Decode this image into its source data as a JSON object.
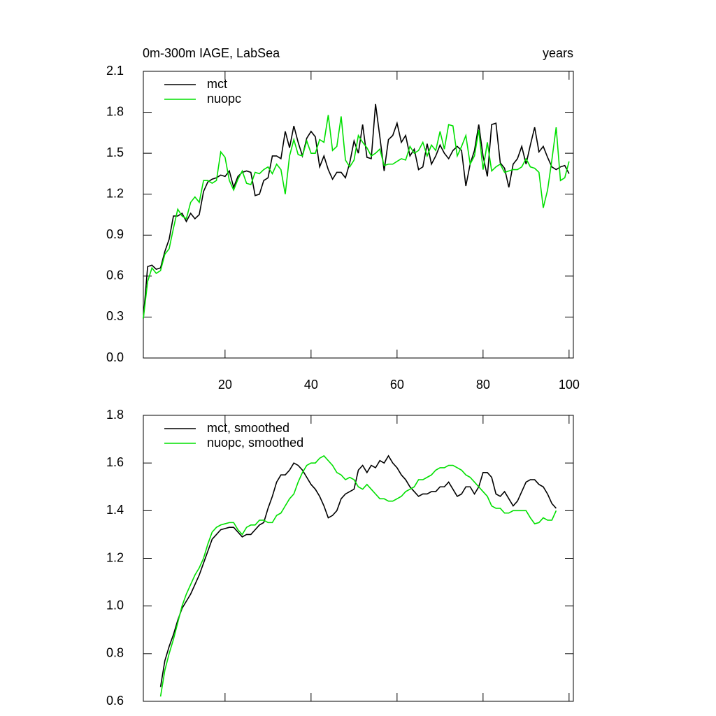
{
  "chart_data": [
    {
      "type": "line",
      "title": "0m-300m IAGE, LabSea",
      "right_title": "years",
      "x": [
        1,
        2,
        3,
        4,
        5,
        6,
        7,
        8,
        9,
        10,
        11,
        12,
        13,
        14,
        15,
        16,
        17,
        18,
        19,
        20,
        21,
        22,
        23,
        24,
        25,
        26,
        27,
        28,
        29,
        30,
        31,
        32,
        33,
        34,
        35,
        36,
        37,
        38,
        39,
        40,
        41,
        42,
        43,
        44,
        45,
        46,
        47,
        48,
        49,
        50,
        51,
        52,
        53,
        54,
        55,
        56,
        57,
        58,
        59,
        60,
        61,
        62,
        63,
        64,
        65,
        66,
        67,
        68,
        69,
        70,
        71,
        72,
        73,
        74,
        75,
        76,
        77,
        78,
        79,
        80,
        81,
        82,
        83,
        84,
        85,
        86,
        87,
        88,
        89,
        90,
        91,
        92,
        93,
        94,
        95,
        96,
        97,
        98,
        99,
        100
      ],
      "series": [
        {
          "name": "mct",
          "color": "#000000",
          "values": [
            0.29,
            0.67,
            0.68,
            0.65,
            0.66,
            0.78,
            0.87,
            1.04,
            1.04,
            1.06,
            1.0,
            1.06,
            1.02,
            1.05,
            1.22,
            1.29,
            1.31,
            1.32,
            1.34,
            1.33,
            1.37,
            1.25,
            1.33,
            1.36,
            1.37,
            1.36,
            1.19,
            1.2,
            1.3,
            1.32,
            1.48,
            1.48,
            1.46,
            1.66,
            1.54,
            1.7,
            1.58,
            1.48,
            1.61,
            1.66,
            1.62,
            1.4,
            1.48,
            1.38,
            1.31,
            1.36,
            1.36,
            1.32,
            1.43,
            1.59,
            1.5,
            1.71,
            1.47,
            1.46,
            1.86,
            1.62,
            1.37,
            1.6,
            1.63,
            1.72,
            1.58,
            1.63,
            1.48,
            1.53,
            1.38,
            1.4,
            1.57,
            1.42,
            1.48,
            1.56,
            1.5,
            1.46,
            1.52,
            1.55,
            1.52,
            1.26,
            1.42,
            1.52,
            1.71,
            1.48,
            1.33,
            1.71,
            1.72,
            1.43,
            1.39,
            1.25,
            1.42,
            1.46,
            1.55,
            1.42,
            1.56,
            1.69,
            1.51,
            1.55,
            1.47,
            1.4,
            1.38,
            1.4,
            1.41,
            1.35
          ]
        },
        {
          "name": "nuopc",
          "color": "#00e000",
          "values": [
            0.29,
            0.56,
            0.66,
            0.62,
            0.64,
            0.76,
            0.8,
            0.95,
            1.09,
            1.04,
            1.02,
            1.14,
            1.18,
            1.14,
            1.3,
            1.3,
            1.28,
            1.3,
            1.51,
            1.47,
            1.3,
            1.23,
            1.31,
            1.37,
            1.28,
            1.27,
            1.36,
            1.35,
            1.38,
            1.4,
            1.35,
            1.42,
            1.38,
            1.2,
            1.48,
            1.6,
            1.49,
            1.48,
            1.59,
            1.5,
            1.5,
            1.6,
            1.58,
            1.78,
            1.52,
            1.55,
            1.77,
            1.45,
            1.4,
            1.45,
            1.63,
            1.58,
            1.54,
            1.48,
            1.5,
            1.53,
            1.41,
            1.42,
            1.42,
            1.44,
            1.46,
            1.45,
            1.55,
            1.5,
            1.52,
            1.58,
            1.48,
            1.56,
            1.52,
            1.66,
            1.53,
            1.71,
            1.7,
            1.48,
            1.55,
            1.63,
            1.42,
            1.48,
            1.67,
            1.38,
            1.58,
            1.37,
            1.4,
            1.42,
            1.36,
            1.37,
            1.38,
            1.38,
            1.4,
            1.46,
            1.4,
            1.39,
            1.36,
            1.1,
            1.23,
            1.45,
            1.69,
            1.3,
            1.32,
            1.44
          ]
        }
      ],
      "xlim": [
        1,
        101
      ],
      "xticks": [
        20,
        40,
        60,
        80,
        100
      ],
      "ylim": [
        0,
        2.1
      ],
      "yticks": [
        {
          "value": 0,
          "label": "0.0"
        },
        0.3,
        0.6,
        0.9,
        1.2,
        1.5,
        1.8,
        2.1
      ],
      "legend": "top-left"
    },
    {
      "type": "line",
      "x": [
        5,
        6,
        7,
        8,
        9,
        10,
        11,
        12,
        13,
        14,
        15,
        16,
        17,
        18,
        19,
        20,
        21,
        22,
        23,
        24,
        25,
        26,
        27,
        28,
        29,
        30,
        31,
        32,
        33,
        34,
        35,
        36,
        37,
        38,
        39,
        40,
        41,
        42,
        43,
        44,
        45,
        46,
        47,
        48,
        49,
        50,
        51,
        52,
        53,
        54,
        55,
        56,
        57,
        58,
        59,
        60,
        61,
        62,
        63,
        64,
        65,
        66,
        67,
        68,
        69,
        70,
        71,
        72,
        73,
        74,
        75,
        76,
        77,
        78,
        79,
        80,
        81,
        82,
        83,
        84,
        85,
        86,
        87,
        88,
        89,
        90,
        91,
        92,
        93,
        94,
        95,
        96,
        97
      ],
      "series": [
        {
          "name": "mct, smoothed",
          "color": "#000000",
          "values": [
            0.66,
            0.77,
            0.83,
            0.88,
            0.94,
            0.99,
            1.02,
            1.05,
            1.09,
            1.13,
            1.18,
            1.23,
            1.28,
            1.3,
            1.32,
            1.325,
            1.33,
            1.33,
            1.31,
            1.29,
            1.3,
            1.3,
            1.32,
            1.34,
            1.35,
            1.41,
            1.46,
            1.52,
            1.55,
            1.55,
            1.57,
            1.6,
            1.59,
            1.57,
            1.54,
            1.51,
            1.49,
            1.46,
            1.42,
            1.37,
            1.38,
            1.4,
            1.45,
            1.47,
            1.48,
            1.49,
            1.57,
            1.59,
            1.56,
            1.59,
            1.58,
            1.61,
            1.6,
            1.63,
            1.6,
            1.58,
            1.55,
            1.53,
            1.5,
            1.48,
            1.46,
            1.47,
            1.47,
            1.48,
            1.48,
            1.5,
            1.5,
            1.52,
            1.49,
            1.46,
            1.47,
            1.5,
            1.5,
            1.47,
            1.5,
            1.56,
            1.56,
            1.54,
            1.47,
            1.46,
            1.48,
            1.45,
            1.42,
            1.44,
            1.48,
            1.52,
            1.53,
            1.53,
            1.51,
            1.5,
            1.47,
            1.43,
            1.41
          ]
        },
        {
          "name": "nuopc, smoothed",
          "color": "#00e000",
          "values": [
            0.62,
            0.73,
            0.8,
            0.86,
            0.93,
            1.0,
            1.05,
            1.09,
            1.13,
            1.16,
            1.2,
            1.26,
            1.31,
            1.33,
            1.34,
            1.345,
            1.35,
            1.35,
            1.32,
            1.3,
            1.33,
            1.34,
            1.34,
            1.36,
            1.36,
            1.35,
            1.35,
            1.38,
            1.39,
            1.42,
            1.45,
            1.47,
            1.52,
            1.56,
            1.59,
            1.6,
            1.6,
            1.62,
            1.63,
            1.61,
            1.59,
            1.56,
            1.55,
            1.53,
            1.54,
            1.53,
            1.5,
            1.49,
            1.51,
            1.49,
            1.47,
            1.45,
            1.45,
            1.44,
            1.44,
            1.45,
            1.46,
            1.48,
            1.49,
            1.5,
            1.53,
            1.53,
            1.54,
            1.55,
            1.57,
            1.58,
            1.58,
            1.59,
            1.59,
            1.58,
            1.57,
            1.55,
            1.54,
            1.52,
            1.5,
            1.48,
            1.46,
            1.42,
            1.41,
            1.41,
            1.39,
            1.39,
            1.4,
            1.4,
            1.4,
            1.4,
            1.37,
            1.345,
            1.35,
            1.37,
            1.36,
            1.36,
            1.4
          ]
        }
      ],
      "xlim": [
        1,
        101
      ],
      "ylim": [
        0.6,
        1.8
      ],
      "yticks": [
        0.6,
        0.8,
        {
          "value": 1,
          "label": "1.0"
        },
        1.2,
        1.4,
        1.6,
        1.8
      ],
      "legend": "top-left"
    }
  ]
}
